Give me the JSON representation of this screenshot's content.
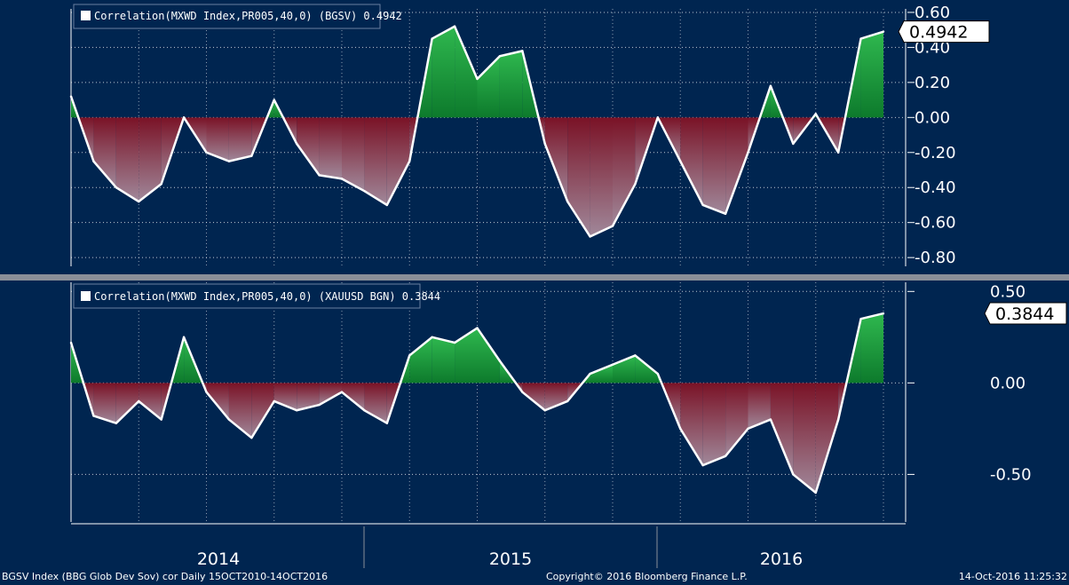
{
  "chart_data": [
    {
      "type": "area",
      "legend": "Correlation(MXWD Index,PR005,40,0) (BGSV)  0.4942",
      "last_value_label": "0.4942",
      "ylim": [
        -0.85,
        0.62
      ],
      "yticks": [
        0.6,
        0.4,
        0.2,
        0.0,
        -0.2,
        -0.4,
        -0.6,
        -0.8
      ],
      "ytick_labels": [
        "0.60",
        "0.40",
        "0.20",
        "0.00",
        "-0.20",
        "-0.40",
        "-0.60",
        "-0.80"
      ],
      "x": [
        "2013-10",
        "2013-11",
        "2013-12",
        "2014-01",
        "2014-02",
        "2014-03",
        "2014-04",
        "2014-05",
        "2014-06",
        "2014-07",
        "2014-08",
        "2014-09",
        "2014-10",
        "2014-11",
        "2014-12",
        "2015-01",
        "2015-02",
        "2015-03",
        "2015-04",
        "2015-05",
        "2015-06",
        "2015-07",
        "2015-08",
        "2015-09",
        "2015-10",
        "2015-11",
        "2015-12",
        "2016-01",
        "2016-02",
        "2016-03",
        "2016-04",
        "2016-05",
        "2016-06",
        "2016-07",
        "2016-08",
        "2016-09",
        "2016-10"
      ],
      "values": [
        0.12,
        -0.25,
        -0.4,
        -0.48,
        -0.38,
        0.0,
        -0.2,
        -0.25,
        -0.22,
        0.1,
        -0.15,
        -0.33,
        -0.35,
        -0.42,
        -0.5,
        -0.25,
        0.45,
        0.52,
        0.22,
        0.35,
        0.38,
        -0.15,
        -0.48,
        -0.68,
        -0.62,
        -0.38,
        0.0,
        -0.25,
        -0.5,
        -0.55,
        -0.2,
        0.18,
        -0.15,
        0.02,
        -0.2,
        0.45,
        0.49
      ],
      "fill_colors": {
        "positive": "#1a9a3c",
        "negative": "#8a1a2a"
      },
      "line_color": "#ffffff"
    },
    {
      "type": "area",
      "legend": "Correlation(MXWD Index,PR005,40,0) (XAUUSD BGN)  0.3844",
      "last_value_label": "0.3844",
      "ylim": [
        -0.76,
        0.55
      ],
      "yticks": [
        0.5,
        0.0,
        -0.5
      ],
      "ytick_labels": [
        "0.50",
        "0.00",
        "-0.50"
      ],
      "x": [
        "2013-10",
        "2013-11",
        "2013-12",
        "2014-01",
        "2014-02",
        "2014-03",
        "2014-04",
        "2014-05",
        "2014-06",
        "2014-07",
        "2014-08",
        "2014-09",
        "2014-10",
        "2014-11",
        "2014-12",
        "2015-01",
        "2015-02",
        "2015-03",
        "2015-04",
        "2015-05",
        "2015-06",
        "2015-07",
        "2015-08",
        "2015-09",
        "2015-10",
        "2015-11",
        "2015-12",
        "2016-01",
        "2016-02",
        "2016-03",
        "2016-04",
        "2016-05",
        "2016-06",
        "2016-07",
        "2016-08",
        "2016-09",
        "2016-10"
      ],
      "values": [
        0.22,
        -0.18,
        -0.22,
        -0.1,
        -0.2,
        0.25,
        -0.05,
        -0.2,
        -0.3,
        -0.1,
        -0.15,
        -0.12,
        -0.05,
        -0.15,
        -0.22,
        0.15,
        0.25,
        0.22,
        0.3,
        0.12,
        -0.05,
        -0.15,
        -0.1,
        0.05,
        0.1,
        0.15,
        0.05,
        -0.25,
        -0.45,
        -0.4,
        -0.25,
        -0.2,
        -0.5,
        -0.6,
        -0.2,
        0.35,
        0.38
      ],
      "fill_colors": {
        "positive": "#1a9a3c",
        "negative": "#8a1a2a"
      },
      "line_color": "#ffffff"
    }
  ],
  "x_axis": {
    "year_labels": [
      "2014",
      "2015",
      "2016"
    ]
  },
  "footer": {
    "left": "BGSV Index (BBG Glob Dev Sov) cor  Daily 15OCT2010-14OCT2016",
    "center": "Copyright© 2016 Bloomberg Finance L.P.",
    "right": "14-Oct-2016 11:25:32"
  }
}
